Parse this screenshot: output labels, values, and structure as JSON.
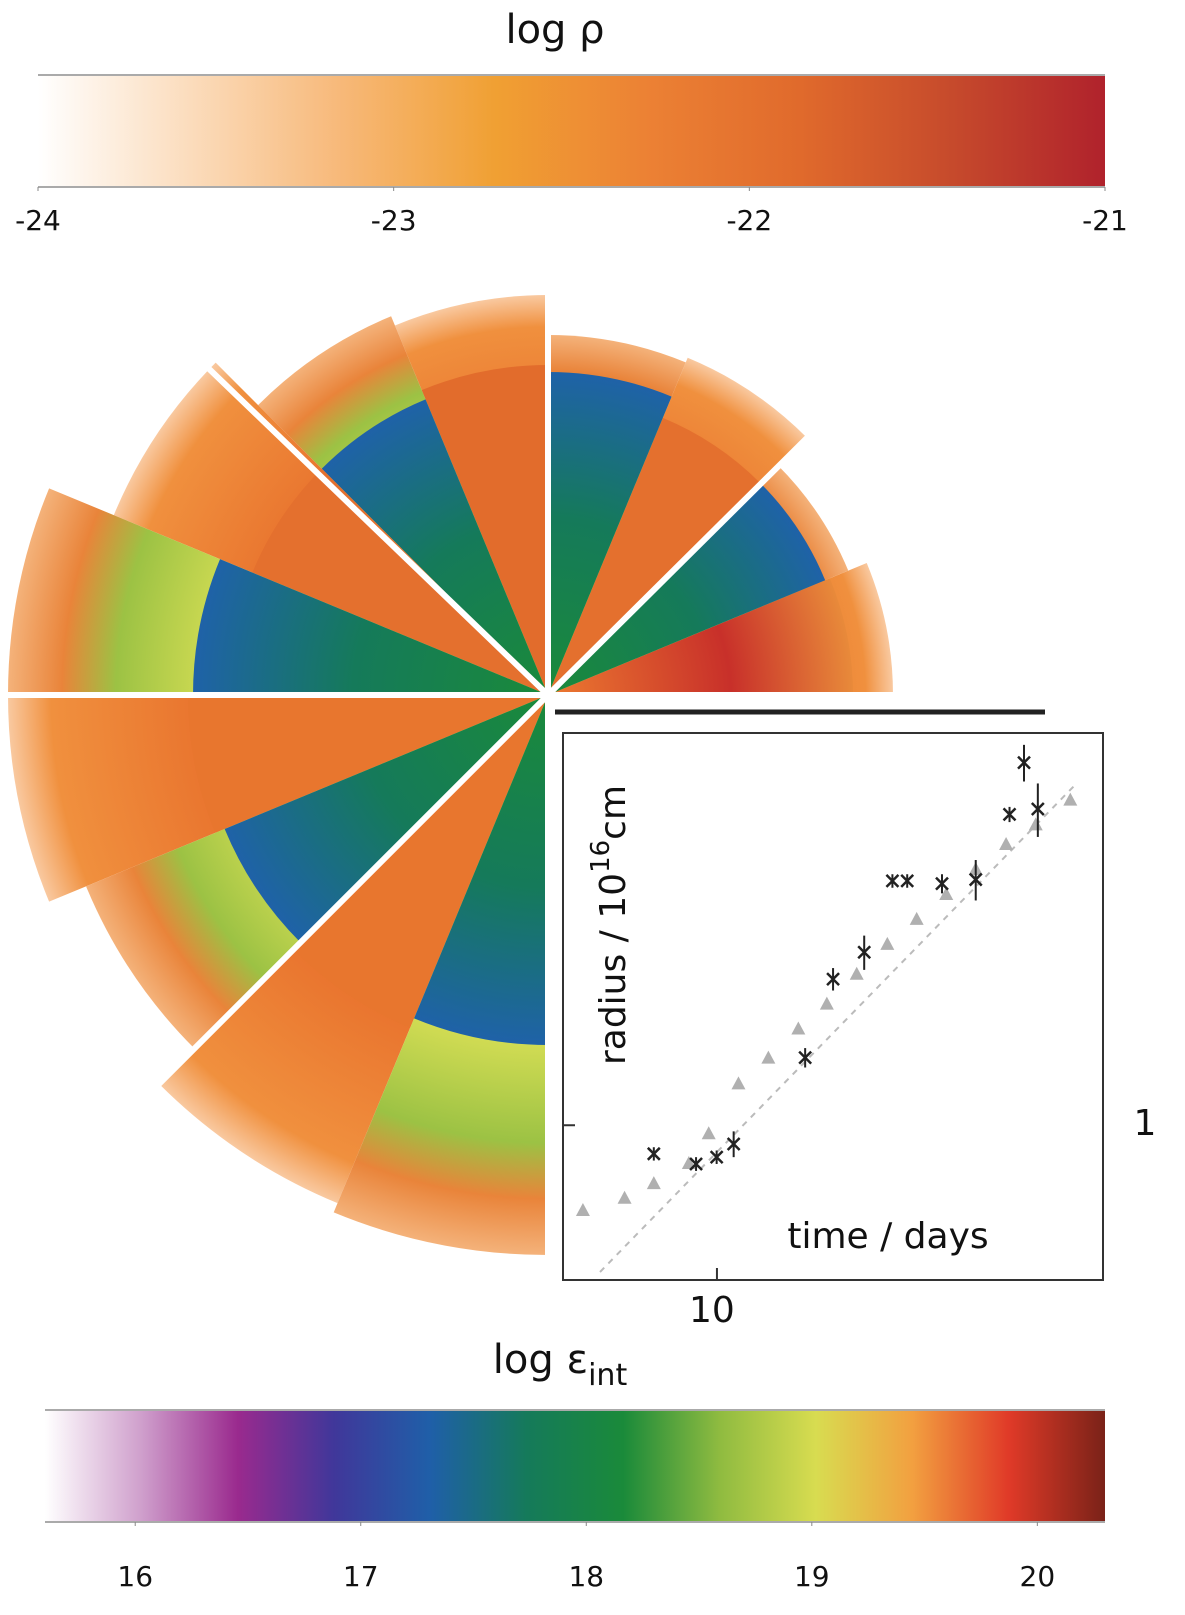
{
  "chart_data": [
    {
      "type": "colorbar",
      "title": "log ρ",
      "colors": [
        "#ffffff",
        "#fbdcbc",
        "#f7b878",
        "#f0a033",
        "#ec8134",
        "#e06a2c",
        "#c64a2c",
        "#b0222c"
      ],
      "xlim": [
        -24,
        -21
      ],
      "xticks": [
        -24,
        -23,
        -22,
        -21
      ]
    },
    {
      "type": "scatter",
      "xlabel": "time / days",
      "ylabel": "radius /  10",
      "ylabel_superscript": "16",
      "ylabel_unit": "cm",
      "xscale": "log",
      "yscale": "log",
      "xlim": [
        6,
        36
      ],
      "ylim": [
        0.6,
        3.65
      ],
      "xticks": [
        10
      ],
      "yticks": [
        1
      ],
      "series": [
        {
          "marker": "triangle",
          "color": "#b0b0b0",
          "x": [
            6.41,
            7.36,
            8.11,
            9.11,
            9.73,
            10.74,
            11.86,
            13.1,
            14.4,
            15.9,
            17.6,
            19.4,
            21.4,
            23.6,
            26.1,
            28.8,
            32.3
          ],
          "values": [
            0.756,
            0.787,
            0.826,
            0.883,
            0.974,
            1.148,
            1.25,
            1.376,
            1.494,
            1.649,
            1.82,
            1.976,
            2.145,
            2.33,
            2.53,
            2.7,
            2.93
          ]
        },
        {
          "marker": "cross",
          "color": "#222222",
          "x": [
            8.11,
            9.33,
            9.99,
            10.57,
            13.4,
            14.7,
            16.3,
            17.9,
            18.8,
            21.1,
            23.6,
            26.4,
            27.7,
            29.0
          ],
          "values": [
            0.91,
            0.88,
            0.9,
            0.94,
            1.25,
            1.62,
            1.77,
            2.24,
            2.24,
            2.22,
            2.25,
            2.79,
            3.31,
            2.84
          ],
          "errors": [
            0.02,
            0.02,
            0.02,
            0.04,
            0.04,
            0.06,
            0.1,
            0.05,
            0.05,
            0.07,
            0.15,
            0.07,
            0.2,
            0.25
          ]
        }
      ]
    },
    {
      "type": "colorbar",
      "title": "log ε",
      "title_subscript": "int",
      "colors": [
        "#ffffff",
        "#cf9fcc",
        "#9a2a8e",
        "#40379a",
        "#1f5fa8",
        "#157a5a",
        "#1a8a3a",
        "#8fbb40",
        "#d8dc50",
        "#f2a040",
        "#e03a28",
        "#7a2218"
      ],
      "xlim": [
        15.6,
        20.3
      ],
      "xticks": [
        16,
        17,
        18,
        19,
        20
      ]
    }
  ]
}
